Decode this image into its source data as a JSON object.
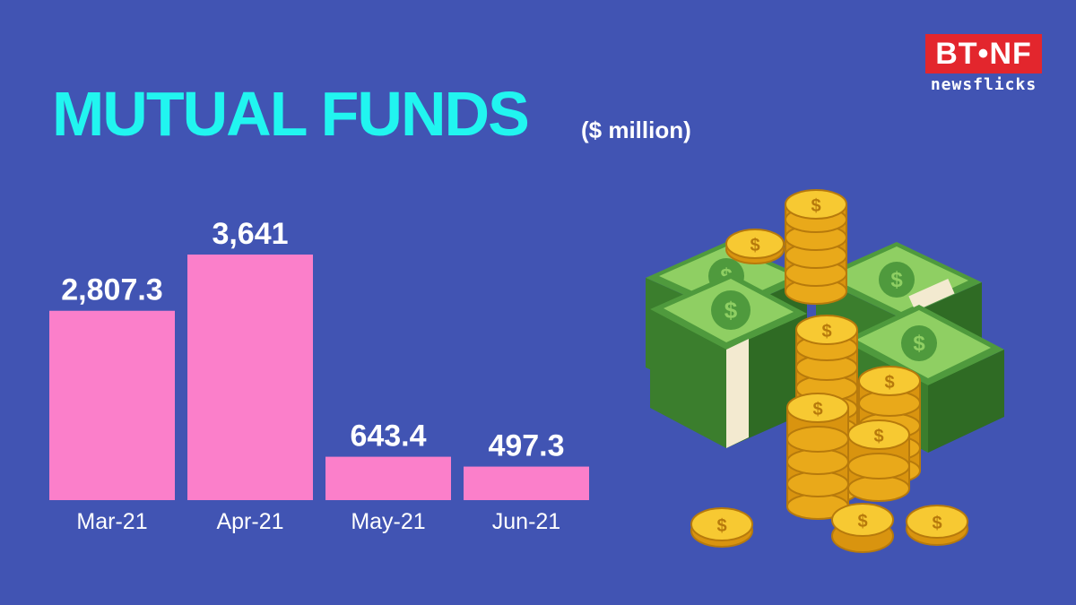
{
  "header": {
    "title": "MUTUAL FUNDS",
    "unit": "($ million)"
  },
  "logo": {
    "badge": "BT•NF",
    "tagline": "newsflicks"
  },
  "colors": {
    "background": "#4154b3",
    "title": "#21f5f0",
    "bar": "#fb7fca",
    "logo_red": "#e3262d"
  },
  "chart_data": {
    "type": "bar",
    "categories": [
      "Mar-21",
      "Apr-21",
      "May-21",
      "Jun-21"
    ],
    "values": [
      2807.3,
      3641,
      643.4,
      497.3
    ],
    "value_labels": [
      "2,807.3",
      "3,641",
      "643.4",
      "497.3"
    ],
    "title": "MUTUAL FUNDS",
    "subtitle": "($ million)",
    "ylim": [
      0,
      3641
    ],
    "grid": false
  },
  "illustration": {
    "icon": "money-stacks-and-coins-icon"
  }
}
